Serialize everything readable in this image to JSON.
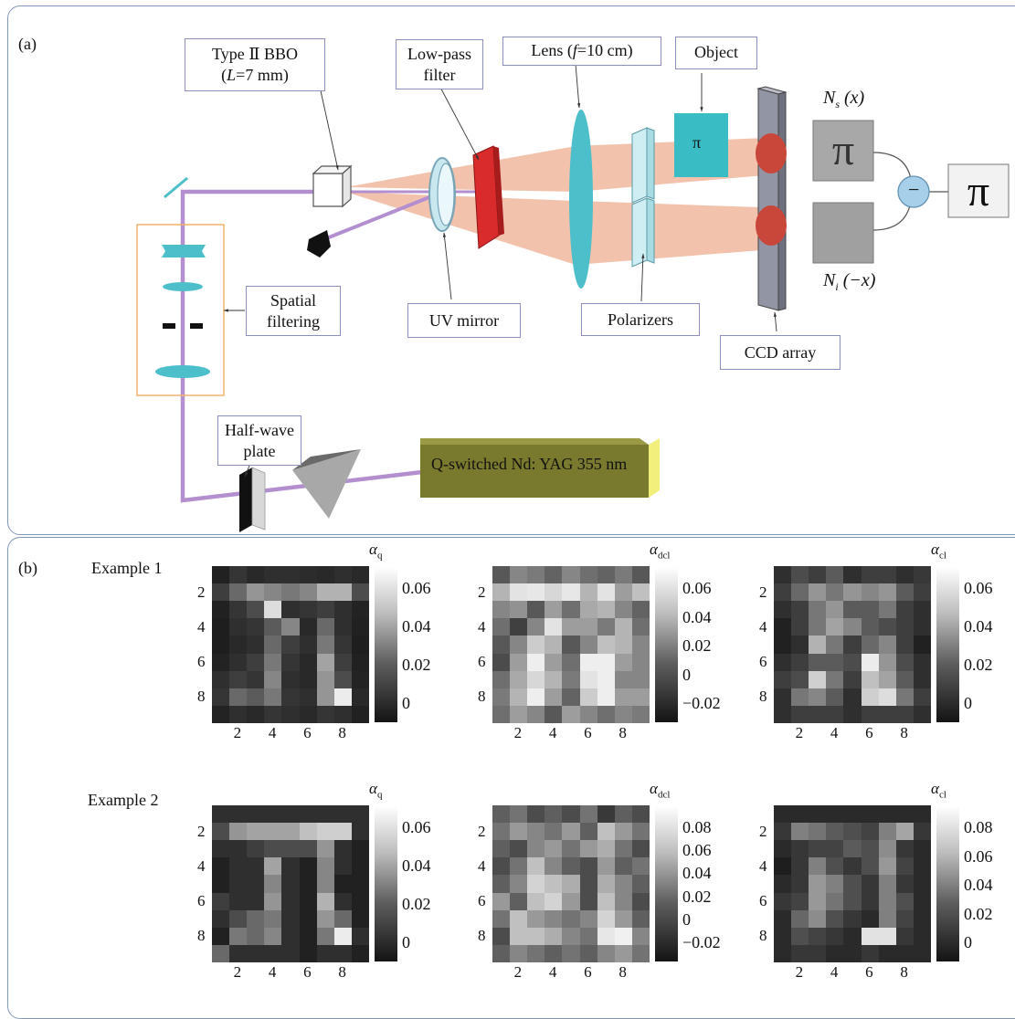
{
  "panel_a": {
    "label": "(a)",
    "boxes": {
      "bbo_line1": "Type Ⅱ BBO",
      "bbo_line2_pre": "(",
      "bbo_line2_var": "L",
      "bbo_line2_post": "=7 mm)",
      "lowpass_line1": "Low-pass",
      "lowpass_line2": "filter",
      "lens_pre": "Lens (",
      "lens_var": "f",
      "lens_post": "=10 cm)",
      "object": "Object",
      "spatial_line1": "Spatial",
      "spatial_line2": "filtering",
      "uv_mirror": "UV mirror",
      "polarizers": "Polarizers",
      "ccd_array": "CCD array",
      "halfwave_line1": "Half-wave",
      "halfwave_line2": "plate"
    },
    "laser_label": "Q-switched Nd: YAG 355 nm",
    "object_symbol": "π",
    "ns_symbol": "N",
    "ns_sub": "s",
    "ns_arg": " (x)",
    "ni_symbol": "N",
    "ni_sub": "i",
    "ni_arg": " (−x)",
    "minus": "−",
    "colors": {
      "uv_beam": "#b48fd0",
      "spdc_beam": "#f2c2ad",
      "optic_cyan": "#4cbfcb",
      "filter_red": "#d92b2b",
      "laser_body": "#7a7a2f",
      "laser_end": "#f2ef7c",
      "box_border": "#8c8fbe",
      "panel_border": "#7f97b8"
    }
  },
  "panel_b": {
    "label": "(b)",
    "examples": [
      {
        "label": "Example 1",
        "maps": [
          {
            "cb_label": "α",
            "cb_sub": "q",
            "cb_ticks": [
              "0.06",
              "0.04",
              "0.02",
              "0"
            ],
            "x_ticks": [
              "2",
              "4",
              "6",
              "8"
            ],
            "y_ticks": [
              "2",
              "4",
              "6",
              "8"
            ],
            "vmin": 0,
            "vmax": 0.08,
            "values": [
              [
                0.005,
                0.012,
                0.008,
                0.01,
                0.01,
                0.009,
                0.008,
                0.01,
                0.008
              ],
              [
                0.015,
                0.03,
                0.045,
                0.04,
                0.035,
                0.04,
                0.055,
                0.055,
                0.02
              ],
              [
                0.005,
                0.012,
                0.02,
                0.07,
                0.01,
                0.012,
                0.015,
                0.01,
                0.006
              ],
              [
                0.004,
                0.01,
                0.012,
                0.025,
                0.04,
                0.008,
                0.03,
                0.01,
                0.005
              ],
              [
                0.004,
                0.008,
                0.01,
                0.03,
                0.015,
                0.01,
                0.035,
                0.012,
                0.004
              ],
              [
                0.006,
                0.01,
                0.015,
                0.035,
                0.012,
                0.008,
                0.05,
                0.015,
                0.005
              ],
              [
                0.01,
                0.015,
                0.012,
                0.04,
                0.01,
                0.008,
                0.045,
                0.02,
                0.006
              ],
              [
                0.012,
                0.03,
                0.025,
                0.035,
                0.012,
                0.01,
                0.045,
                0.075,
                0.008
              ],
              [
                0.006,
                0.01,
                0.008,
                0.012,
                0.01,
                0.008,
                0.012,
                0.01,
                0.005
              ]
            ]
          },
          {
            "cb_label": "α",
            "cb_sub": "dcl",
            "cb_ticks": [
              "0.06",
              "0.04",
              "0.02",
              "0",
              "−0.02"
            ],
            "x_ticks": [
              "2",
              "4",
              "6",
              "8"
            ],
            "y_ticks": [
              "2",
              "4",
              "6",
              "8"
            ],
            "vmin": -0.03,
            "vmax": 0.07,
            "values": [
              [
                0.0,
                0.02,
                0.015,
                0.005,
                0.02,
                0.01,
                0.005,
                0.015,
                0.0
              ],
              [
                0.04,
                0.06,
                0.062,
                0.055,
                0.062,
                0.04,
                0.06,
                0.03,
                0.045
              ],
              [
                0.02,
                0.025,
                0.0,
                0.03,
                0.01,
                0.035,
                0.04,
                0.02,
                0.005
              ],
              [
                0.01,
                -0.01,
                0.02,
                0.06,
                0.03,
                0.03,
                0.015,
                0.04,
                0.01
              ],
              [
                0.0,
                0.02,
                0.05,
                0.04,
                0.0,
                0.02,
                0.045,
                0.04,
                0.02
              ],
              [
                -0.005,
                0.03,
                0.065,
                0.03,
                0.01,
                0.065,
                0.065,
                0.03,
                0.02
              ],
              [
                0.01,
                0.035,
                0.055,
                0.04,
                0.015,
                0.06,
                0.065,
                0.02,
                0.02
              ],
              [
                0.015,
                0.04,
                0.065,
                0.03,
                0.005,
                0.05,
                0.065,
                0.03,
                0.03
              ],
              [
                0.01,
                0.03,
                0.02,
                0.0,
                0.03,
                0.02,
                0.01,
                0.02,
                0.015
              ]
            ]
          },
          {
            "cb_label": "α",
            "cb_sub": "cl",
            "cb_ticks": [
              "0.06",
              "0.04",
              "0.02",
              "0"
            ],
            "x_ticks": [
              "2",
              "4",
              "6",
              "8"
            ],
            "y_ticks": [
              "2",
              "4",
              "6",
              "8"
            ],
            "vmin": -0.005,
            "vmax": 0.075,
            "values": [
              [
                0.005,
                0.015,
                0.01,
                0.02,
                0.005,
                0.01,
                0.01,
                0.005,
                0.008
              ],
              [
                0.01,
                0.025,
                0.04,
                0.03,
                0.04,
                0.035,
                0.04,
                0.02,
                0.01
              ],
              [
                0.005,
                0.01,
                0.03,
                0.04,
                0.02,
                0.02,
                0.03,
                0.01,
                0.005
              ],
              [
                0.0,
                0.01,
                0.03,
                0.045,
                0.035,
                0.02,
                0.015,
                0.01,
                0.005
              ],
              [
                0.0,
                0.005,
                0.05,
                0.03,
                0.01,
                0.025,
                0.035,
                0.01,
                0.0
              ],
              [
                0.005,
                0.01,
                0.02,
                0.02,
                0.015,
                0.07,
                0.04,
                0.015,
                0.005
              ],
              [
                0.01,
                0.015,
                0.06,
                0.03,
                0.01,
                0.055,
                0.045,
                0.02,
                0.005
              ],
              [
                0.005,
                0.03,
                0.035,
                0.02,
                0.005,
                0.06,
                0.065,
                0.03,
                0.01
              ],
              [
                0.005,
                0.01,
                0.01,
                0.01,
                0.005,
                0.01,
                0.01,
                0.01,
                0.005
              ]
            ]
          }
        ]
      },
      {
        "label": "Example 2",
        "maps": [
          {
            "cb_label": "α",
            "cb_sub": "q",
            "cb_ticks": [
              "0.06",
              "0.04",
              "0.02",
              "0"
            ],
            "x_ticks": [
              "2",
              "4",
              "6",
              "8"
            ],
            "y_ticks": [
              "2",
              "4",
              "6",
              "8"
            ],
            "vmin": 0,
            "vmax": 0.08,
            "values": [
              [
                0.01,
                0.01,
                0.01,
                0.01,
                0.01,
                0.01,
                0.01,
                0.01,
                0.01
              ],
              [
                0.02,
                0.045,
                0.05,
                0.05,
                0.05,
                0.06,
                0.065,
                0.065,
                0.01
              ],
              [
                0.01,
                0.01,
                0.015,
                0.02,
                0.02,
                0.02,
                0.045,
                0.01,
                0.005
              ],
              [
                0.005,
                0.01,
                0.01,
                0.05,
                0.01,
                0.005,
                0.04,
                0.01,
                0.005
              ],
              [
                0.005,
                0.01,
                0.01,
                0.04,
                0.01,
                0.005,
                0.04,
                0.005,
                0.005
              ],
              [
                0.015,
                0.01,
                0.01,
                0.045,
                0.01,
                0.005,
                0.055,
                0.01,
                0.005
              ],
              [
                0.01,
                0.02,
                0.03,
                0.035,
                0.01,
                0.005,
                0.045,
                0.03,
                0.005
              ],
              [
                0.005,
                0.035,
                0.03,
                0.04,
                0.01,
                0.005,
                0.035,
                0.075,
                0.01
              ],
              [
                0.03,
                0.01,
                0.01,
                0.01,
                0.01,
                0.005,
                0.01,
                0.01,
                0.005
              ]
            ]
          },
          {
            "cb_label": "α",
            "cb_sub": "dcl",
            "cb_ticks": [
              "0.08",
              "0.06",
              "0.04",
              "0.02",
              "0",
              "−0.02"
            ],
            "x_ticks": [
              "2",
              "4",
              "6",
              "8"
            ],
            "y_ticks": [
              "2",
              "4",
              "6",
              "8"
            ],
            "vmin": -0.03,
            "vmax": 0.09,
            "values": [
              [
                0.01,
                0.02,
                0.0,
                0.01,
                0.0,
                0.02,
                -0.01,
                0.01,
                0.0
              ],
              [
                0.02,
                0.04,
                0.03,
                0.02,
                0.04,
                0.01,
                0.06,
                0.04,
                0.02
              ],
              [
                0.01,
                0.0,
                0.03,
                0.04,
                0.02,
                0.04,
                0.05,
                0.02,
                0.0
              ],
              [
                0.0,
                0.02,
                0.06,
                0.03,
                0.01,
                0.0,
                0.04,
                0.01,
                0.02
              ],
              [
                0.01,
                0.03,
                0.07,
                0.06,
                0.05,
                0.0,
                0.05,
                0.03,
                0.01
              ],
              [
                0.04,
                0.01,
                0.06,
                0.07,
                0.04,
                0.0,
                0.06,
                0.03,
                0.0
              ],
              [
                0.02,
                0.06,
                0.04,
                0.03,
                0.02,
                0.03,
                0.07,
                0.04,
                0.01
              ],
              [
                0.0,
                0.06,
                0.06,
                0.05,
                0.03,
                0.02,
                0.08,
                0.085,
                0.03
              ],
              [
                0.01,
                0.03,
                0.02,
                0.01,
                0.02,
                0.01,
                0.03,
                0.04,
                0.02
              ]
            ]
          },
          {
            "cb_label": "α",
            "cb_sub": "cl",
            "cb_ticks": [
              "0.08",
              "0.06",
              "0.04",
              "0.02",
              "0"
            ],
            "x_ticks": [
              "2",
              "4",
              "6",
              "8"
            ],
            "y_ticks": [
              "2",
              "4",
              "6",
              "8"
            ],
            "vmin": -0.005,
            "vmax": 0.09,
            "values": [
              [
                0.005,
                0.005,
                0.005,
                0.005,
                0.005,
                0.005,
                0.005,
                0.005,
                0.005
              ],
              [
                0.01,
                0.04,
                0.035,
                0.025,
                0.02,
                0.015,
                0.04,
                0.055,
                0.01
              ],
              [
                0.005,
                0.01,
                0.015,
                0.015,
                0.025,
                0.02,
                0.045,
                0.01,
                0.005
              ],
              [
                0.0,
                0.01,
                0.04,
                0.02,
                0.01,
                0.02,
                0.05,
                0.015,
                0.005
              ],
              [
                0.005,
                0.01,
                0.05,
                0.04,
                0.02,
                0.01,
                0.04,
                0.01,
                0.005
              ],
              [
                0.01,
                0.015,
                0.05,
                0.035,
                0.02,
                0.01,
                0.04,
                0.02,
                0.005
              ],
              [
                0.005,
                0.03,
                0.045,
                0.02,
                0.01,
                0.005,
                0.04,
                0.015,
                0.005
              ],
              [
                0.005,
                0.02,
                0.015,
                0.01,
                0.005,
                0.08,
                0.08,
                0.01,
                0.005
              ],
              [
                0.005,
                0.01,
                0.01,
                0.005,
                0.005,
                0.01,
                0.005,
                0.005,
                0.005
              ]
            ]
          }
        ]
      }
    ]
  }
}
